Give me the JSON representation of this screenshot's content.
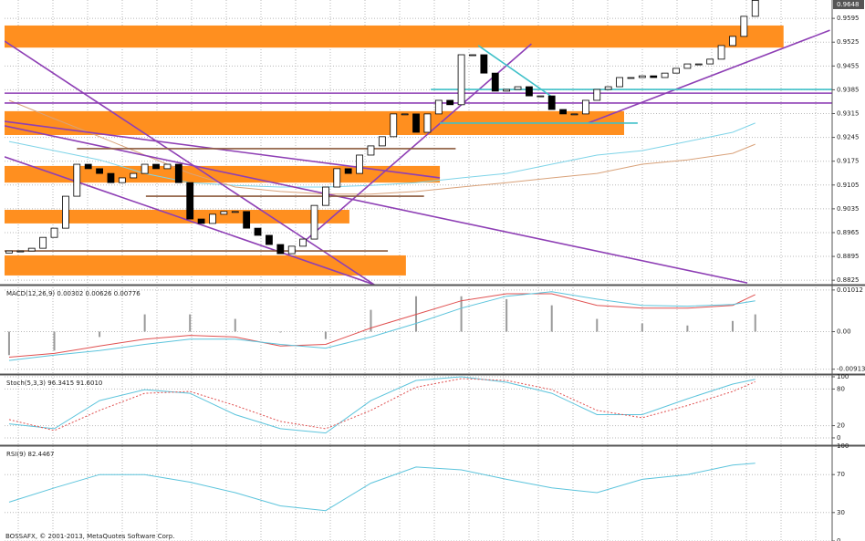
{
  "footer": "BOSSAFX, © 2001-2013, MetaQuotes Software Corp.",
  "chart_data": [
    {
      "type": "candlestick",
      "xlim": [
        -0.4,
        72.8
      ],
      "ylim": [
        0.8812,
        0.9649
      ],
      "yticks": [
        0.9595,
        0.9525,
        0.9455,
        0.9385,
        0.9315,
        0.9245,
        0.9175,
        0.9105,
        0.9035,
        0.8965,
        0.8895,
        0.8825
      ],
      "grid": true,
      "up_color": "#ffffff",
      "down_color": "#000000",
      "open": [
        0.8905,
        0.8911,
        0.8911,
        0.8919,
        0.8951,
        0.8978,
        0.9072,
        0.9166,
        0.9153,
        0.9139,
        0.9112,
        0.9126,
        0.9139,
        0.9166,
        0.9153,
        0.9166,
        0.9112,
        0.9005,
        0.8992,
        0.9019,
        0.9027,
        0.9027,
        0.8978,
        0.8957,
        0.893,
        0.8903,
        0.8925,
        0.8946,
        0.9045,
        0.9099,
        0.9153,
        0.9139,
        0.9193,
        0.922,
        0.9247,
        0.9314,
        0.9314,
        0.926,
        0.9314,
        0.9354,
        0.9341,
        0.9488,
        0.9488,
        0.9434,
        0.9381,
        0.9386,
        0.9394,
        0.9367,
        0.9367,
        0.9327,
        0.9314,
        0.9314,
        0.9354,
        0.9386,
        0.9394,
        0.9421,
        0.9421,
        0.9426,
        0.9421,
        0.9434,
        0.9448,
        0.9461,
        0.9461,
        0.9475,
        0.9515,
        0.9542,
        0.9601
      ],
      "close": [
        0.8911,
        0.8911,
        0.8919,
        0.8951,
        0.8978,
        0.9072,
        0.9166,
        0.9153,
        0.9139,
        0.9112,
        0.9126,
        0.9139,
        0.9166,
        0.9153,
        0.9166,
        0.9112,
        0.9005,
        0.8992,
        0.9019,
        0.9027,
        0.9027,
        0.8978,
        0.8957,
        0.893,
        0.8903,
        0.8925,
        0.8946,
        0.9045,
        0.9099,
        0.9153,
        0.9139,
        0.9193,
        0.922,
        0.9247,
        0.9314,
        0.9314,
        0.926,
        0.9314,
        0.9354,
        0.9341,
        0.9488,
        0.9488,
        0.9434,
        0.9381,
        0.9386,
        0.9394,
        0.9367,
        0.9367,
        0.9327,
        0.9314,
        0.9314,
        0.9354,
        0.9386,
        0.9394,
        0.9421,
        0.9421,
        0.9426,
        0.9421,
        0.9434,
        0.9448,
        0.9461,
        0.9461,
        0.9475,
        0.9515,
        0.9542,
        0.9601,
        0.9648
      ],
      "zones": [
        {
          "color": "#ff8f1f",
          "from": -0.4,
          "to": 68.5,
          "low": 0.9509,
          "high": 0.9574
        },
        {
          "color": "#ff8f1f",
          "from": -0.4,
          "to": 54.4,
          "low": 0.9252,
          "high": 0.9322
        },
        {
          "color": "#ff8f1f",
          "from": -0.4,
          "to": 38.1,
          "low": 0.9112,
          "high": 0.9161
        },
        {
          "color": "#ff8f1f",
          "from": -0.4,
          "to": 30.1,
          "low": 0.8992,
          "high": 0.9032
        },
        {
          "color": "#ff8f1f",
          "from": -0.4,
          "to": 35.1,
          "low": 0.8839,
          "high": 0.8898
        }
      ],
      "overlays": [
        {
          "color": "#7fd4e8",
          "x": [
            0,
            4,
            8,
            12,
            16,
            20,
            24,
            28,
            32,
            36,
            40,
            44,
            48,
            52,
            56,
            60,
            64,
            66
          ],
          "values": [
            0.9233,
            0.9206,
            0.9179,
            0.9139,
            0.9112,
            0.9104,
            0.9099,
            0.9099,
            0.9104,
            0.9112,
            0.9126,
            0.9139,
            0.9166,
            0.9193,
            0.9206,
            0.9233,
            0.926,
            0.9287
          ]
        },
        {
          "color": "#d9a27a",
          "x": [
            0,
            4,
            8,
            12,
            16,
            20,
            24,
            28,
            32,
            36,
            40,
            44,
            48,
            52,
            56,
            60,
            64,
            66
          ],
          "values": [
            0.9354,
            0.93,
            0.9247,
            0.9193,
            0.9139,
            0.9099,
            0.9086,
            0.9078,
            0.9078,
            0.9086,
            0.9099,
            0.9112,
            0.9126,
            0.9139,
            0.9166,
            0.9179,
            0.9198,
            0.9225
          ]
        }
      ],
      "trendlines": [
        {
          "color": "#8e3fb5",
          "x": [
            -0.4,
            32.3
          ],
          "values": [
            0.9528,
            0.8812
          ]
        },
        {
          "color": "#8e3fb5",
          "x": [
            -0.4,
            38.1
          ],
          "values": [
            0.9292,
            0.9126
          ]
        },
        {
          "color": "#8e3fb5",
          "x": [
            -0.4,
            32.3
          ],
          "values": [
            0.9188,
            0.8812
          ]
        },
        {
          "color": "#8e3fb5",
          "x": [
            -0.4,
            65.3
          ],
          "values": [
            0.9279,
            0.8817
          ]
        },
        {
          "color": "#8e3fb5",
          "x": [
            25.8,
            46.2
          ],
          "values": [
            0.893,
            0.952
          ]
        },
        {
          "color": "#8e3fb5",
          "x": [
            51.2,
            72.6
          ],
          "values": [
            0.9287,
            0.956
          ]
        },
        {
          "color": "#8e3fb5",
          "x": [
            -0.4,
            72.8
          ],
          "values": [
            0.9375,
            0.9375
          ]
        },
        {
          "color": "#8e3fb5",
          "x": [
            -0.4,
            72.8
          ],
          "values": [
            0.9346,
            0.9346
          ]
        },
        {
          "color": "#3fc1c9",
          "x": [
            41.5,
            47.9
          ],
          "values": [
            0.9515,
            0.9367
          ]
        },
        {
          "color": "#3fc1c9",
          "x": [
            37.3,
            72.8
          ],
          "values": [
            0.9386,
            0.9386
          ]
        },
        {
          "color": "#3fc1c9",
          "x": [
            38.1,
            55.6
          ],
          "values": [
            0.9287,
            0.9287
          ]
        },
        {
          "color": "#8b5a3c",
          "x": [
            -0.4,
            33.5
          ],
          "values": [
            0.8911,
            0.8911
          ]
        },
        {
          "color": "#8b5a3c",
          "x": [
            6.0,
            39.5
          ],
          "values": [
            0.9212,
            0.9212
          ]
        },
        {
          "color": "#8b5a3c",
          "x": [
            12.1,
            36.7
          ],
          "values": [
            0.9072,
            0.9072
          ]
        }
      ]
    },
    {
      "type": "macd",
      "label": "MACD(12,26,9) 0.00302 0.00626 0.00776",
      "xlim": [
        -0.4,
        72.8
      ],
      "ylim": [
        -0.0103,
        0.0112
      ],
      "yticks": [
        0.01012,
        {
          "value": 0,
          "label": "0.00"
        },
        -0.00913
      ],
      "x": [
        0,
        4,
        8,
        12,
        16,
        20,
        24,
        28,
        32,
        36,
        40,
        44,
        48,
        52,
        56,
        60,
        64,
        66
      ],
      "histogram": {
        "color": "#9a9a9a",
        "values": [
          -0.0057,
          -0.0046,
          -0.0013,
          0.0042,
          0.0042,
          0.0031,
          -0.0002,
          -0.0018,
          0.0053,
          0.0086,
          0.0086,
          0.0079,
          0.0064,
          0.0031,
          0.002,
          0.0015,
          0.0026,
          0.0042
        ]
      },
      "series": [
        {
          "color": "#e05050",
          "values": [
            -0.0062,
            -0.0053,
            -0.0035,
            -0.0018,
            -0.0009,
            -0.0013,
            -0.0035,
            -0.0031,
            0.0009,
            0.0042,
            0.0075,
            0.0092,
            0.0092,
            0.0064,
            0.0057,
            0.0057,
            0.0064,
            0.009
          ]
        },
        {
          "color": "#5cc4dc",
          "values": [
            -0.007,
            -0.0057,
            -0.0046,
            -0.0031,
            -0.0018,
            -0.0018,
            -0.0031,
            -0.004,
            -0.0013,
            0.002,
            0.0057,
            0.0086,
            0.0097,
            0.0079,
            0.0064,
            0.0062,
            0.0066,
            0.0075
          ]
        }
      ]
    },
    {
      "type": "line",
      "label": "Stoch(5,3,3) 96.3415 91.6010",
      "xlim": [
        -0.4,
        72.8
      ],
      "ylim": [
        -12,
        103
      ],
      "yticks": [
        100,
        80,
        20,
        0
      ],
      "x": [
        0,
        4,
        8,
        12,
        16,
        20,
        24,
        28,
        32,
        36,
        40,
        44,
        48,
        52,
        56,
        60,
        64,
        66
      ],
      "series": [
        {
          "color": "#5cc4dc",
          "dashed": false,
          "values": [
            23,
            15,
            61,
            79,
            73,
            38,
            15,
            8,
            61,
            94,
            100,
            91,
            73,
            38,
            38,
            64,
            88,
            96
          ]
        },
        {
          "color": "#e05050",
          "dashed": true,
          "values": [
            30,
            12,
            45,
            73,
            76,
            53,
            27,
            15,
            45,
            83,
            97,
            94,
            79,
            45,
            33,
            53,
            76,
            92
          ]
        }
      ]
    },
    {
      "type": "line",
      "label": "RSI(9) 82.4467",
      "xlim": [
        -0.4,
        72.8
      ],
      "ylim": [
        0,
        100
      ],
      "yticks": [
        100,
        70,
        30,
        0
      ],
      "x": [
        0,
        4,
        8,
        12,
        16,
        20,
        24,
        28,
        32,
        36,
        40,
        44,
        48,
        52,
        56,
        60,
        64,
        66
      ],
      "series": [
        {
          "color": "#5cc4dc",
          "dashed": false,
          "values": [
            41,
            56,
            70,
            70,
            62,
            51,
            37,
            32,
            61,
            78,
            75,
            65,
            56,
            51,
            65,
            70,
            80,
            82
          ]
        }
      ]
    }
  ]
}
